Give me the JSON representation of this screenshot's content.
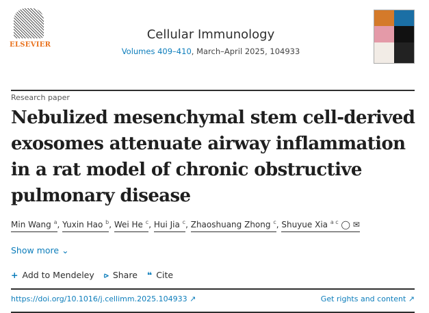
{
  "publisher": {
    "logo_text": "ELSEVIER"
  },
  "journal": {
    "name": "Cellular Immunology",
    "volumes_link": "Volumes 409–410",
    "issue_details": ", March–April 2025, 104933"
  },
  "article": {
    "type": "Research paper",
    "title": "Nebulized mesenchymal stem cell-derived exosomes attenuate airway inflammation in a rat model of chronic obstructive pulmonary disease",
    "authors": [
      {
        "name": "Min Wang",
        "aff": "a"
      },
      {
        "name": "Yuxin Hao",
        "aff": "b"
      },
      {
        "name": "Wei He",
        "aff": "c"
      },
      {
        "name": "Hui Jia",
        "aff": "c"
      },
      {
        "name": "Zhaoshuang Zhong",
        "aff": "c"
      },
      {
        "name": "Shuyue Xia",
        "aff": "a c"
      }
    ]
  },
  "show_more": "Show more",
  "actions": {
    "mendeley": "Add to Mendeley",
    "share": "Share",
    "cite": "Cite"
  },
  "links": {
    "doi": "https://doi.org/10.1016/j.cellimm.2025.104933",
    "rights": "Get rights and content"
  },
  "colors": {
    "link": "#0c7dbb",
    "publisher": "#e9711c"
  }
}
